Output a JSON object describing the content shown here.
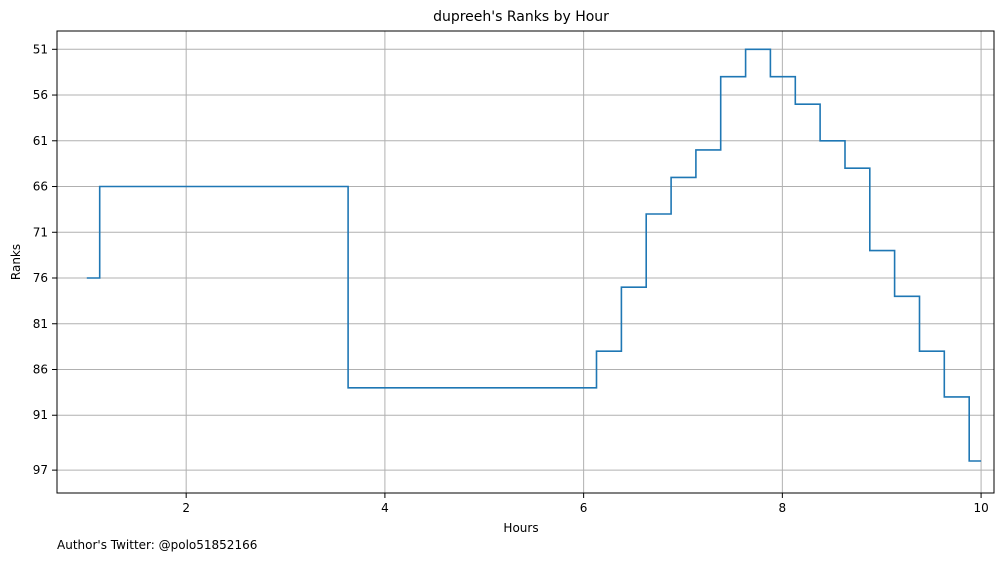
{
  "chart_data": {
    "type": "line",
    "step": "post",
    "title": "dupreeh's Ranks by Hour",
    "xlabel": "Hours",
    "ylabel": "Ranks",
    "xlim": [
      0.7,
      10.13
    ],
    "ylim": [
      99.5,
      49
    ],
    "y_inverted": true,
    "grid": true,
    "color": "#1f77b4",
    "xticks": [
      2,
      4,
      6,
      8,
      10
    ],
    "xtick_labels": [
      "2",
      "4",
      "6",
      "8",
      "10"
    ],
    "yticks": [
      51,
      56,
      61,
      66,
      71,
      76,
      81,
      86,
      91,
      97
    ],
    "ytick_labels": [
      "51",
      "56",
      "61",
      "66",
      "71",
      "76",
      "81",
      "86",
      "91",
      "97"
    ],
    "series": [
      {
        "x": [
          1.0,
          1.13,
          3.63,
          6.13,
          6.38,
          6.63,
          6.88,
          7.13,
          7.38,
          7.63,
          7.88,
          8.13,
          8.38,
          8.63,
          8.88,
          9.13,
          9.38,
          9.63,
          9.88,
          10.0
        ],
        "y": [
          76,
          66,
          88,
          84,
          77,
          69,
          65,
          62,
          54,
          51,
          54,
          57,
          61,
          64,
          73,
          78,
          84,
          89,
          96,
          96
        ]
      }
    ]
  },
  "footnote": "Author's Twitter: @polo51852166"
}
